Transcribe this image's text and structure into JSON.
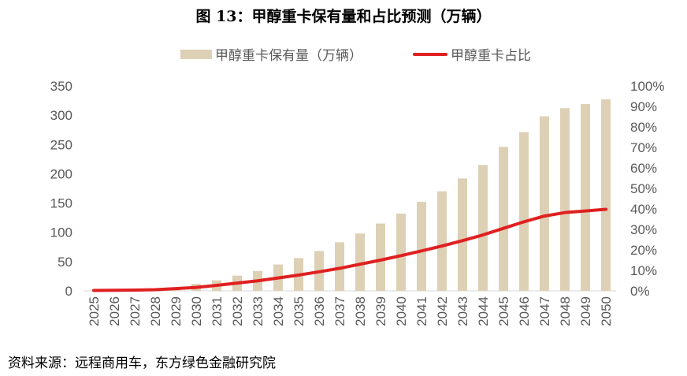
{
  "title": "图 13：甲醇重卡保有量和占比预测（万辆）",
  "source": "资料来源：远程商用车，东方绿色金融研究院",
  "colors": {
    "bar": "#ddd0b5",
    "line": "#e02020",
    "axis": "#d9d9d9",
    "text": "#595959"
  },
  "chart_data": {
    "type": "bar",
    "categories": [
      "2025",
      "2026",
      "2027",
      "2028",
      "2029",
      "2030",
      "2031",
      "2032",
      "2033",
      "2034",
      "2035",
      "2036",
      "2037",
      "2038",
      "2039",
      "2040",
      "2041",
      "2042",
      "2043",
      "2044",
      "2045",
      "2046",
      "2047",
      "2048",
      "2049",
      "2050"
    ],
    "series": [
      {
        "name": "甲醇重卡保有量（万辆）",
        "type": "bar",
        "axis": "left",
        "values": [
          0.5,
          1,
          2,
          3,
          5,
          12,
          18,
          26,
          34,
          45,
          56,
          68,
          83,
          98,
          115,
          132,
          152,
          170,
          192,
          215,
          246,
          271,
          298,
          312,
          319,
          327
        ]
      },
      {
        "name": "甲醇重卡占比",
        "type": "line",
        "axis": "right",
        "values": [
          0.002,
          0.003,
          0.004,
          0.006,
          0.011,
          0.017,
          0.027,
          0.038,
          0.049,
          0.063,
          0.077,
          0.093,
          0.11,
          0.13,
          0.15,
          0.172,
          0.195,
          0.219,
          0.245,
          0.273,
          0.305,
          0.337,
          0.365,
          0.382,
          0.39,
          0.398
        ]
      }
    ],
    "y_left": {
      "min": 0,
      "max": 350,
      "ticks": [
        "0",
        "50",
        "100",
        "150",
        "200",
        "250",
        "300",
        "350"
      ]
    },
    "y_right": {
      "min": 0,
      "max": 1.0,
      "ticks": [
        "0%",
        "10%",
        "20%",
        "30%",
        "40%",
        "50%",
        "60%",
        "70%",
        "80%",
        "90%",
        "100%"
      ]
    },
    "legend_position": "top-center",
    "grid": false
  }
}
